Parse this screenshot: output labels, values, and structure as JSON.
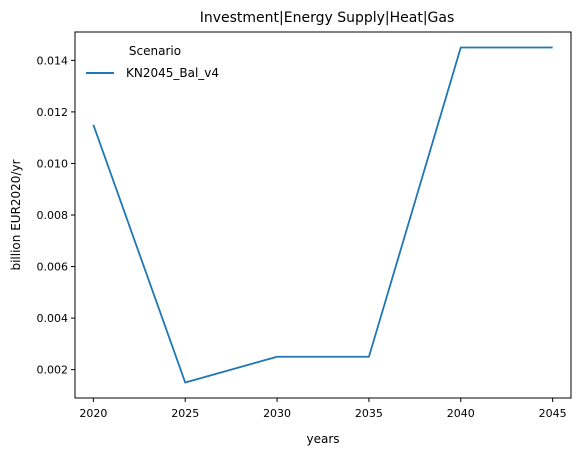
{
  "chart_data": {
    "type": "line",
    "title": "Investment|Energy Supply|Heat|Gas",
    "xlabel": "years",
    "ylabel": "billion EUR2020/yr",
    "x": [
      2020,
      2025,
      2030,
      2035,
      2040,
      2045
    ],
    "series": [
      {
        "name": "KN2045_Bal_v4",
        "values": [
          0.0115,
          0.0015,
          0.0025,
          0.0025,
          0.0145,
          0.0145
        ],
        "color": "#1f77b4"
      }
    ],
    "xticks": [
      "2020",
      "2025",
      "2030",
      "2035",
      "2040",
      "2045"
    ],
    "yticks": [
      "0.002",
      "0.004",
      "0.006",
      "0.008",
      "0.010",
      "0.012",
      "0.014"
    ],
    "xlim": [
      2019,
      2046
    ],
    "ylim": [
      0.0009,
      0.0151
    ],
    "legend": {
      "title": "Scenario",
      "placement": "top-left"
    },
    "grid": false
  }
}
